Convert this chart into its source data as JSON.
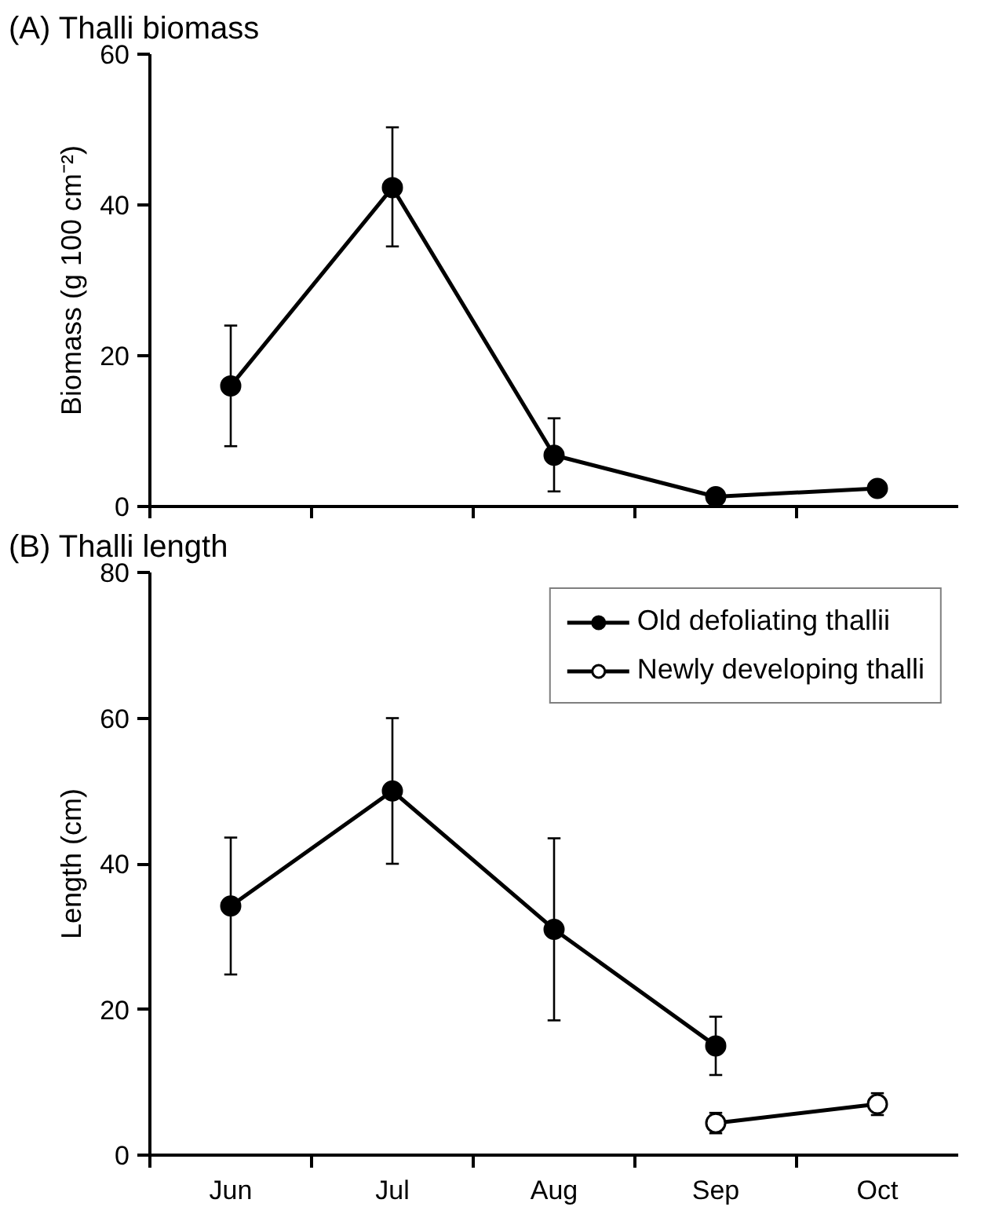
{
  "chart_data": [
    {
      "type": "line",
      "title": "(A) Thalli biomass",
      "ylabel": "Biomass (g 100 cm⁻²)",
      "categories": [
        null,
        null,
        null,
        null,
        null
      ],
      "ylim": [
        0,
        60
      ],
      "yticks": [
        0,
        20,
        40,
        60
      ],
      "tick_labels": "y",
      "grid": false,
      "legend": false,
      "marker": "circle",
      "series": [
        {
          "color": "#000000",
          "values": [
            16,
            42.3,
            6.8,
            1.3,
            2.4
          ],
          "errors": [
            [
              8,
              24
            ],
            [
              34.5,
              50.3
            ],
            [
              2,
              11.7
            ],
            null,
            [
              1.6,
              3.2
            ]
          ]
        }
      ]
    },
    {
      "type": "line",
      "title": "(B) Thalli length",
      "ylabel": "Length (cm)",
      "categories": [
        "Jun",
        "Jul",
        "Aug",
        "Sep",
        "Oct"
      ],
      "ylim": [
        0,
        80
      ],
      "yticks": [
        0,
        20,
        40,
        60,
        80
      ],
      "grid": false,
      "legend": "top right",
      "marker": "circle",
      "series": [
        {
          "name": "Old defoliating thallii",
          "color": "#000000",
          "values": [
            34.2,
            50,
            31,
            15,
            null
          ],
          "errors": [
            [
              24.8,
              43.6
            ],
            [
              40,
              60
            ],
            [
              18.5,
              43.5
            ],
            [
              11,
              19
            ],
            null
          ]
        },
        {
          "name": "Newly developing thalli",
          "color": "#000000",
          "marker": "open_circle",
          "values": [
            null,
            null,
            null,
            4.4,
            7
          ],
          "errors": [
            null,
            null,
            null,
            [
              3,
              5.8
            ],
            [
              5.5,
              8.5
            ]
          ]
        }
      ]
    }
  ]
}
